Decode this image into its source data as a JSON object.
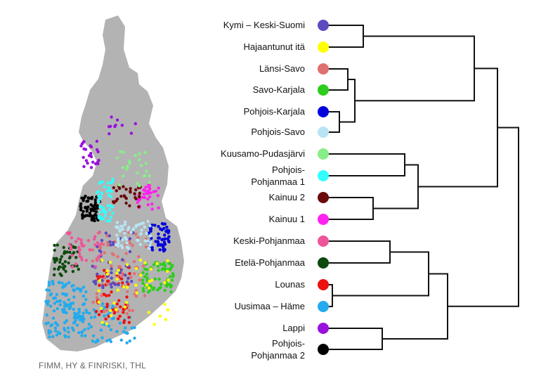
{
  "credit": "FIMM, HY & FINRISKI, THL",
  "groups": [
    {
      "label": "Kymi – Keski-Suomi",
      "color": "#5b4bbf"
    },
    {
      "label": "Hajaantunut itä",
      "color": "#ffff00"
    },
    {
      "label": "Länsi-Savo",
      "color": "#e07070"
    },
    {
      "label": "Savo-Karjala",
      "color": "#2ecc1e"
    },
    {
      "label": "Pohjois-Karjala",
      "color": "#0000dd"
    },
    {
      "label": "Pohjois-Savo",
      "color": "#b7e4f4"
    },
    {
      "label": "Kuusamo-Pudasjärvi",
      "color": "#88ee88"
    },
    {
      "label": "Pohjois-Pohjanmaa 1",
      "lines": [
        "Pohjois-",
        "Pohjanmaa 1"
      ],
      "color": "#33ffff"
    },
    {
      "label": "Kainuu 2",
      "color": "#6b0a0a"
    },
    {
      "label": "Kainuu 1",
      "color": "#ff22ee"
    },
    {
      "label": "Keski-Pohjanmaa",
      "color": "#ee5599"
    },
    {
      "label": "Etelä-Pohjanmaa",
      "color": "#0e4a0e"
    },
    {
      "label": "Lounas",
      "color": "#ee1111"
    },
    {
      "label": "Uusimaa – Häme",
      "color": "#22aaee"
    },
    {
      "label": "Lappi",
      "color": "#9911dd"
    },
    {
      "label": "Pohjois-Pohjanmaa 2",
      "lines": [
        "Pohjois-",
        "Pohjanmaa 2"
      ],
      "color": "#000000"
    }
  ]
}
